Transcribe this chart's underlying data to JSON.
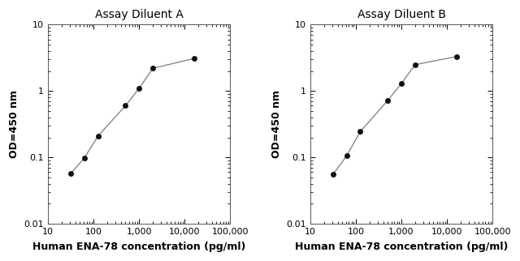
{
  "panel_A": {
    "title": "Assay Diluent A",
    "x": [
      31.25,
      62.5,
      125,
      500,
      1000,
      2000,
      16000
    ],
    "y": [
      0.057,
      0.098,
      0.21,
      0.6,
      1.1,
      2.2,
      3.1
    ]
  },
  "panel_B": {
    "title": "Assay Diluent B",
    "x": [
      31.25,
      62.5,
      125,
      500,
      1000,
      2000,
      16000
    ],
    "y": [
      0.055,
      0.105,
      0.245,
      0.72,
      1.3,
      2.5,
      3.3
    ]
  },
  "xlabel": "Human ENA-78 concentration (pg/ml)",
  "ylabel": "OD=450 nm",
  "xlim": [
    10,
    100000
  ],
  "ylim": [
    0.01,
    10
  ],
  "xticks": [
    10,
    100,
    1000,
    10000,
    100000
  ],
  "xtick_labels": [
    "10",
    "100",
    "1,000",
    "10,000",
    "100,000"
  ],
  "yticks": [
    0.01,
    0.1,
    1,
    10
  ],
  "ytick_labels": [
    "0.01",
    "0.1",
    "1",
    "10"
  ],
  "line_color": "#888888",
  "marker_color": "#111111",
  "marker_size": 5,
  "title_fontsize": 10,
  "label_fontsize": 9,
  "tick_fontsize": 8,
  "background_color": "#ffffff"
}
